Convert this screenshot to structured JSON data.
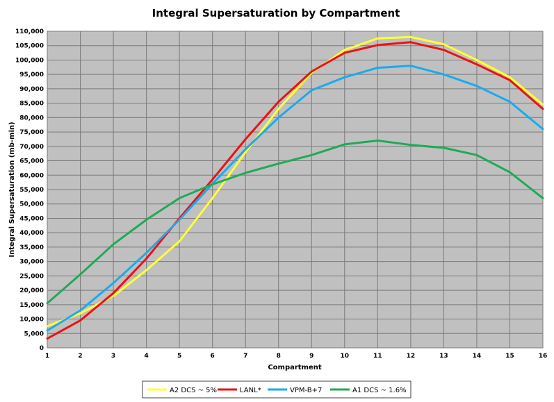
{
  "chart_data": {
    "type": "line",
    "title": "Integral Supersaturation  by Compartment",
    "xlabel": "Compartment",
    "ylabel": "Integral Supersaturation  (mb-min)",
    "x": [
      1,
      2,
      3,
      4,
      5,
      6,
      7,
      8,
      9,
      10,
      11,
      12,
      13,
      14,
      15,
      16
    ],
    "x_tick_labels": [
      "1",
      "2",
      "3",
      "4",
      "5",
      "6",
      "7",
      "8",
      "9",
      "10",
      "11",
      "12",
      "13",
      "14",
      "15",
      "16"
    ],
    "xlim": [
      1,
      16
    ],
    "ylim": [
      0,
      110000
    ],
    "y_tick_labels": [
      "0",
      "5,000",
      "10,000",
      "15,000",
      "20,000",
      "25,000",
      "30,000",
      "35,000",
      "40,000",
      "45,000",
      "50,000",
      "55,000",
      "60,000",
      "65,000",
      "70,000",
      "75,000",
      "80,000",
      "85,000",
      "90,000",
      "95,000",
      "100,000",
      "105,000",
      "110,000"
    ],
    "grid": true,
    "legend_position": "bottom",
    "plot_background": "#c0c0c0",
    "series": [
      {
        "name": "A2  DCS ~ 5%",
        "color": "#ffff33",
        "values": [
          7500,
          12000,
          18000,
          27000,
          37000,
          52000,
          68000,
          83000,
          95500,
          103500,
          107500,
          108000,
          105500,
          100000,
          94000,
          84500
        ]
      },
      {
        "name": "LANL*",
        "color": "#ee1111",
        "values": [
          3200,
          9500,
          19000,
          31000,
          45000,
          58500,
          72500,
          85500,
          96000,
          102500,
          105200,
          106200,
          103500,
          98500,
          93000,
          83000
        ]
      },
      {
        "name": "VPM-B+7",
        "color": "#1aaaee",
        "values": [
          6000,
          13000,
          22500,
          33000,
          44500,
          57000,
          69000,
          80000,
          89500,
          94000,
          97300,
          98000,
          95000,
          91000,
          85500,
          76000
        ]
      },
      {
        "name": "A1  DCS ~ 1.6%",
        "color": "#1faa55",
        "values": [
          15500,
          25500,
          36000,
          44500,
          52000,
          56800,
          60800,
          64000,
          67000,
          70700,
          72000,
          70500,
          69500,
          67000,
          61000,
          52000
        ]
      }
    ]
  }
}
